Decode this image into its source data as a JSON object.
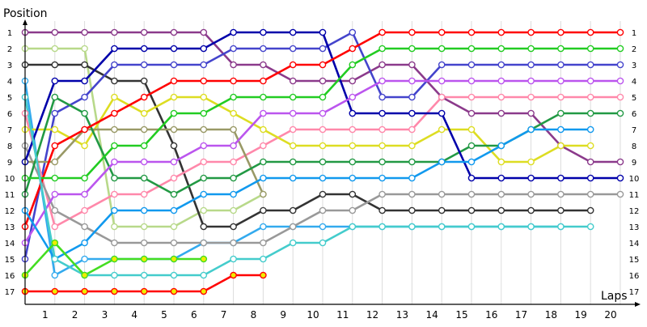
{
  "chart_data": {
    "type": "line",
    "ylabel": "Position",
    "xlabel": "Laps",
    "x": [
      0,
      1,
      2,
      3,
      4,
      5,
      6,
      7,
      8,
      9,
      10,
      11,
      12,
      13,
      14,
      15,
      16,
      17,
      18,
      19,
      20
    ],
    "x_tick_labels": [
      "1",
      "2",
      "3",
      "4",
      "5",
      "6",
      "7",
      "8",
      "9",
      "10",
      "11",
      "12",
      "13",
      "14",
      "15",
      "16",
      "17",
      "18",
      "19",
      "20"
    ],
    "y_tick_labels": [
      "1",
      "2",
      "3",
      "4",
      "5",
      "6",
      "7",
      "8",
      "9",
      "10",
      "11",
      "12",
      "13",
      "14",
      "15",
      "16",
      "17"
    ],
    "y_reversed": true,
    "ylim": [
      1,
      17
    ],
    "xlim": [
      0,
      20.3
    ],
    "grid": "vertical",
    "series": [
      {
        "color": "#8b3a8b",
        "values": [
          1,
          1,
          1,
          1,
          1,
          1,
          1,
          3,
          3,
          4,
          4,
          4,
          3,
          3,
          5,
          6,
          6,
          6,
          8,
          9,
          9
        ]
      },
      {
        "color": "#b8d98a",
        "values": [
          2,
          2,
          2,
          13,
          13,
          13,
          12,
          12,
          11,
          null,
          null,
          null,
          null,
          null,
          null,
          null,
          null,
          null,
          null,
          null,
          null
        ]
      },
      {
        "color": "#333333",
        "values": [
          3,
          3,
          3,
          4,
          4,
          8,
          13,
          13,
          12,
          12,
          11,
          11,
          12,
          12,
          12,
          12,
          12,
          12,
          12,
          12,
          null
        ]
      },
      {
        "color": "#33aaee",
        "values": [
          4,
          16,
          15,
          15,
          15,
          15,
          14,
          14,
          13,
          13,
          13,
          13,
          13,
          13,
          13,
          13,
          13,
          13,
          13,
          null,
          null
        ]
      },
      {
        "color": "#4444cc",
        "values": [
          15,
          6,
          5,
          3,
          3,
          3,
          3,
          2,
          2,
          2,
          2,
          1,
          5,
          5,
          3,
          3,
          3,
          3,
          3,
          3,
          3
        ]
      },
      {
        "color": "#ff88aa",
        "values": [
          6,
          13,
          12,
          11,
          11,
          10,
          9,
          9,
          8,
          7,
          7,
          7,
          7,
          7,
          5,
          5,
          5,
          5,
          5,
          5,
          5
        ]
      },
      {
        "color": "#dddd22",
        "values": [
          7,
          7,
          8,
          5,
          6,
          5,
          5,
          6,
          7,
          8,
          8,
          8,
          8,
          8,
          7,
          7,
          9,
          9,
          8,
          8,
          null
        ]
      },
      {
        "color": "#999999",
        "values": [
          8,
          12,
          13,
          14,
          14,
          14,
          14,
          14,
          14,
          13,
          12,
          12,
          11,
          11,
          11,
          11,
          11,
          11,
          11,
          11,
          11
        ]
      },
      {
        "color": "#999966",
        "values": [
          9,
          9,
          7,
          7,
          7,
          7,
          7,
          7,
          11,
          null,
          null,
          null,
          null,
          null,
          null,
          null,
          null,
          null,
          null,
          null,
          null
        ]
      },
      {
        "color": "#229944",
        "values": [
          11,
          5,
          6,
          10,
          10,
          11,
          10,
          10,
          9,
          9,
          9,
          9,
          9,
          9,
          9,
          8,
          8,
          7,
          6,
          6,
          6
        ]
      },
      {
        "color": "#0000aa",
        "values": [
          9,
          4,
          4,
          2,
          2,
          2,
          2,
          1,
          1,
          1,
          1,
          6,
          6,
          6,
          6,
          10,
          10,
          10,
          10,
          10,
          10
        ]
      },
      {
        "color": "#ff0000",
        "values": [
          13,
          8,
          7,
          6,
          5,
          4,
          4,
          4,
          4,
          3,
          3,
          2,
          1,
          1,
          1,
          1,
          1,
          1,
          1,
          1,
          1
        ]
      },
      {
        "color": "#22cc22",
        "values": [
          10,
          10,
          10,
          8,
          8,
          6,
          6,
          5,
          5,
          5,
          5,
          3,
          2,
          2,
          2,
          2,
          2,
          2,
          2,
          2,
          2
        ]
      },
      {
        "color": "#bb55ee",
        "values": [
          14,
          11,
          11,
          9,
          9,
          9,
          8,
          8,
          6,
          6,
          6,
          5,
          4,
          4,
          4,
          4,
          4,
          4,
          4,
          4,
          4
        ]
      },
      {
        "color": "#1199ee",
        "values": [
          12,
          15,
          14,
          12,
          12,
          12,
          11,
          11,
          10,
          10,
          10,
          10,
          10,
          10,
          9,
          9,
          8,
          7,
          7,
          7,
          null
        ]
      },
      {
        "color": "#44cccc",
        "values": [
          5,
          15,
          16,
          16,
          16,
          16,
          16,
          15,
          15,
          14,
          14,
          13,
          13,
          13,
          13,
          13,
          13,
          13,
          13,
          13,
          null
        ]
      },
      {
        "color": "#44dd22",
        "values": [
          16,
          14,
          16,
          15,
          15,
          15,
          15,
          null,
          null,
          null,
          null,
          null,
          null,
          null,
          null,
          null,
          null,
          null,
          null,
          null,
          null
        ]
      },
      {
        "color": "#ff0000",
        "values": [
          17,
          17,
          17,
          17,
          17,
          17,
          17,
          16,
          16,
          null,
          null,
          null,
          null,
          null,
          null,
          null,
          null,
          null,
          null,
          null,
          null
        ]
      }
    ]
  }
}
